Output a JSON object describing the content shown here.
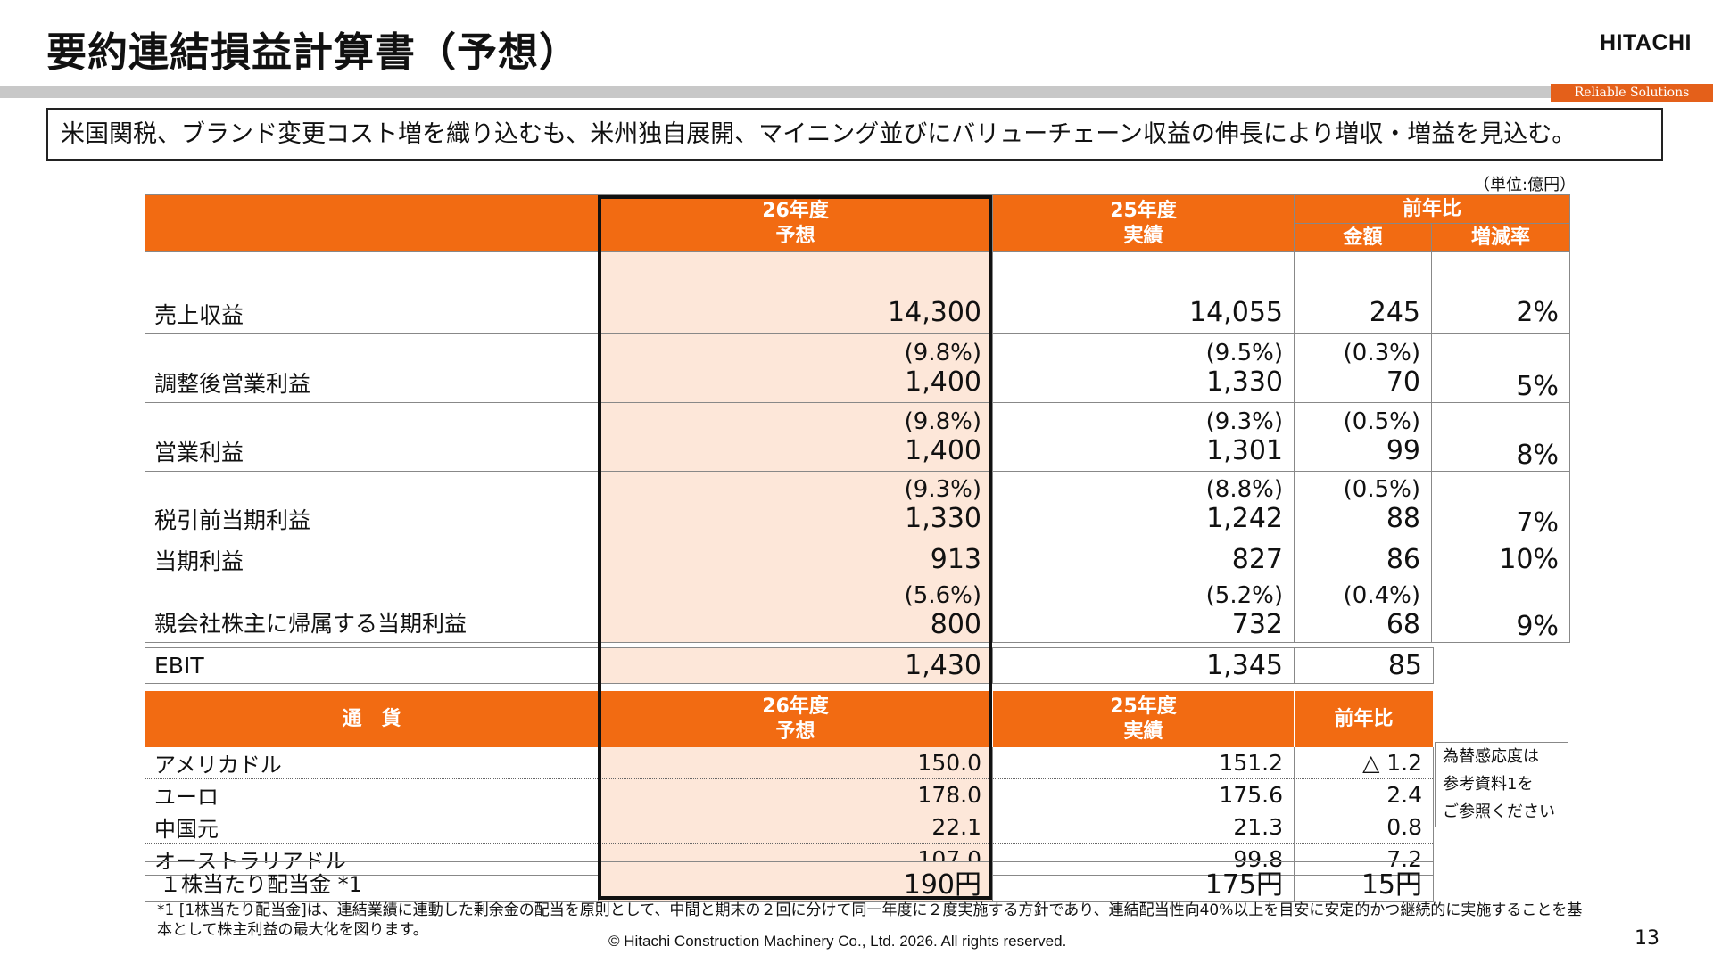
{
  "header": {
    "title": "要約連結損益計算書（予想）",
    "logo": "HITACHI",
    "tagline": "Reliable Solutions"
  },
  "summary": "米国関税、ブランド変更コスト増を織り込むも、米州独自展開、マイニング並びにバリューチェーン収益の伸長により増収・増益を見込む。",
  "unit": "（単位:億円）",
  "pl_table": {
    "headers": {
      "forecast": [
        "26年度",
        "予想"
      ],
      "actual": [
        "25年度",
        "実績"
      ],
      "yoy": "前年比",
      "amount": "金額",
      "rate": "増減率"
    },
    "rows": [
      {
        "label": "売上収益",
        "forecast": "14,300",
        "actual": "14,055",
        "amount": "245",
        "rate": "2%",
        "forecast_pct": "",
        "actual_pct": "",
        "amount_pct": ""
      },
      {
        "label": "調整後営業利益",
        "forecast": "1,400",
        "actual": "1,330",
        "amount": "70",
        "rate": "5%",
        "forecast_pct": "(9.8%)",
        "actual_pct": "(9.5%)",
        "amount_pct": "(0.3%)"
      },
      {
        "label": "営業利益",
        "forecast": "1,400",
        "actual": "1,301",
        "amount": "99",
        "rate": "8%",
        "forecast_pct": "(9.8%)",
        "actual_pct": "(9.3%)",
        "amount_pct": "(0.5%)"
      },
      {
        "label": "税引前当期利益",
        "forecast": "1,330",
        "actual": "1,242",
        "amount": "88",
        "rate": "7%",
        "forecast_pct": "(9.3%)",
        "actual_pct": "(8.8%)",
        "amount_pct": "(0.5%)"
      },
      {
        "label": "当期利益",
        "forecast": "913",
        "actual": "827",
        "amount": "86",
        "rate": "10%",
        "forecast_pct": "",
        "actual_pct": "",
        "amount_pct": ""
      },
      {
        "label": "親会社株主に帰属する当期利益",
        "forecast": "800",
        "actual": "732",
        "amount": "68",
        "rate": "9%",
        "forecast_pct": "(5.6%)",
        "actual_pct": "(5.2%)",
        "amount_pct": "(0.4%)"
      }
    ],
    "ebit": {
      "label": "EBIT",
      "forecast": "1,430",
      "actual": "1,345",
      "amount": "85"
    }
  },
  "fx_table": {
    "headers": {
      "currency": "通　貨",
      "forecast": [
        "26年度",
        "予想"
      ],
      "actual": [
        "25年度",
        "実績"
      ],
      "yoy": "前年比"
    },
    "rows": [
      {
        "label": "アメリカドル",
        "forecast": "150.0",
        "actual": "151.2",
        "yoy": "△ 1.2"
      },
      {
        "label": "ユーロ",
        "forecast": "178.0",
        "actual": "175.6",
        "yoy": "2.4"
      },
      {
        "label": "中国元",
        "forecast": "22.1",
        "actual": "21.3",
        "yoy": "0.8"
      },
      {
        "label": "オーストラリアドル",
        "forecast": "107.0",
        "actual": "99.8",
        "yoy": "7.2"
      }
    ],
    "note": [
      "為替感応度は",
      "参考資料1を",
      "ご参照ください"
    ]
  },
  "dividend": {
    "label": "１株当たり配当金 *1",
    "forecast": "190円",
    "actual": "175円",
    "yoy": "15円"
  },
  "footnote": "*1 [1株当たり配当金]は、連結業績に連動した剰余金の配当を原則として、中間と期末の２回に分けて同一年度に２度実施する方針であり、連結配当性向40%以上を目安に安定的かつ継続的に実施することを基本として株主利益の最大化を図ります。",
  "copyright": "© Hitachi Construction Machinery Co., Ltd. 2026. All rights reserved.",
  "page_number": "13",
  "colors": {
    "header_orange": "#f26b12",
    "forecast_fill": "#fde7d9"
  }
}
